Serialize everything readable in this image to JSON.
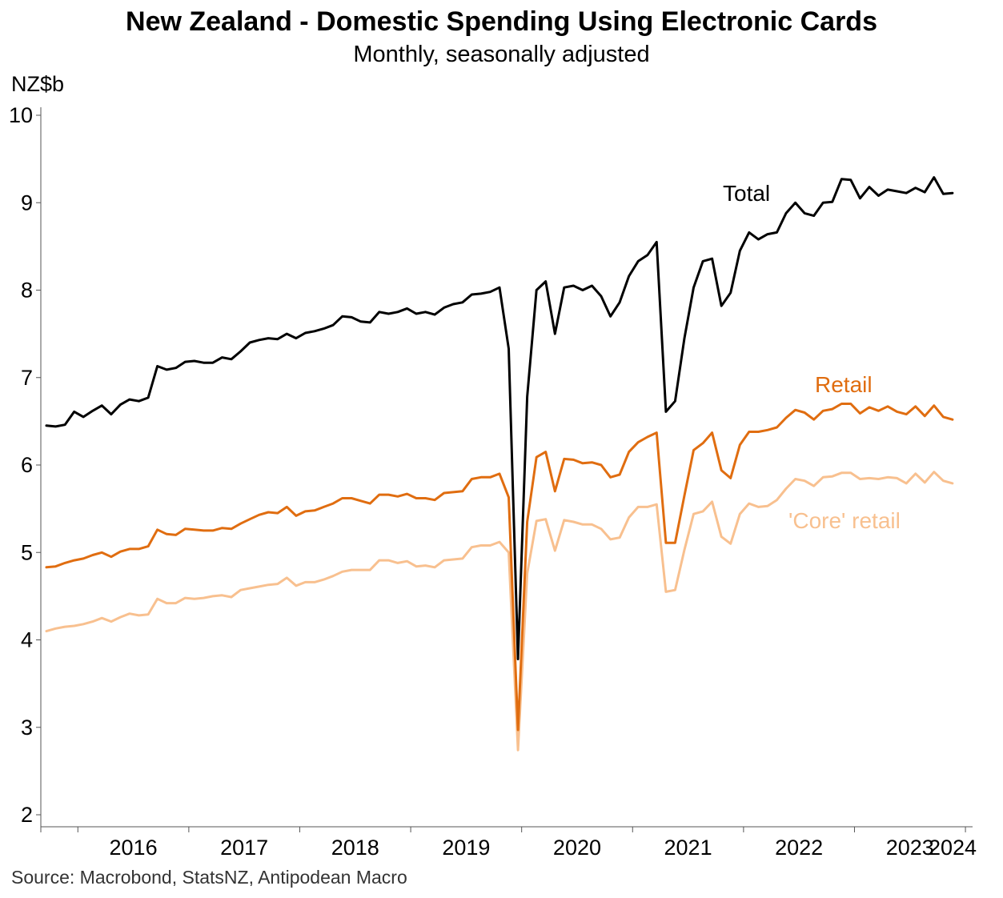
{
  "chart_data": {
    "type": "line",
    "title": "New Zealand - Domestic Spending Using Electronic Cards",
    "subtitle": "Monthly, seasonally adjusted",
    "ylabel": "NZ$b",
    "xlabel": "",
    "ylim": [
      2,
      10
    ],
    "yticks": [
      2,
      3,
      4,
      5,
      6,
      7,
      8,
      9,
      10
    ],
    "x_start": "2015-09",
    "x_tick_labels": [
      "2016",
      "2017",
      "2018",
      "2019",
      "2020",
      "2021",
      "2022",
      "2023",
      "2024"
    ],
    "grid": false,
    "source": "Source: Macrobond, StatsNZ, Antipodean Macro",
    "series": [
      {
        "name": "Total",
        "label": "Total",
        "color": "#000000",
        "values": [
          6.45,
          6.44,
          6.46,
          6.61,
          6.55,
          6.62,
          6.68,
          6.58,
          6.69,
          6.75,
          6.73,
          6.77,
          7.13,
          7.09,
          7.11,
          7.18,
          7.19,
          7.17,
          7.17,
          7.23,
          7.21,
          7.3,
          7.4,
          7.43,
          7.45,
          7.44,
          7.5,
          7.45,
          7.51,
          7.53,
          7.56,
          7.6,
          7.7,
          7.69,
          7.64,
          7.63,
          7.75,
          7.73,
          7.75,
          7.79,
          7.73,
          7.75,
          7.72,
          7.8,
          7.84,
          7.86,
          7.95,
          7.96,
          7.98,
          8.03,
          7.33,
          3.78,
          6.78,
          8.0,
          8.1,
          7.5,
          8.03,
          8.05,
          8.0,
          8.05,
          7.93,
          7.7,
          7.86,
          8.16,
          8.33,
          8.4,
          8.55,
          6.61,
          6.73,
          7.45,
          8.03,
          8.33,
          8.36,
          7.82,
          7.97,
          8.45,
          8.66,
          8.58,
          8.64,
          8.66,
          8.88,
          9.0,
          8.88,
          8.85,
          9.0,
          9.01,
          9.27,
          9.26,
          9.05,
          9.18,
          9.08,
          9.15,
          9.13,
          9.11,
          9.17,
          9.12,
          9.29,
          9.1,
          9.11
        ]
      },
      {
        "name": "Retail",
        "label": "Retail",
        "color": "#e06d10",
        "values": [
          4.83,
          4.84,
          4.88,
          4.91,
          4.93,
          4.97,
          5.0,
          4.95,
          5.01,
          5.04,
          5.04,
          5.07,
          5.26,
          5.21,
          5.2,
          5.27,
          5.26,
          5.25,
          5.25,
          5.28,
          5.27,
          5.33,
          5.38,
          5.43,
          5.46,
          5.45,
          5.52,
          5.42,
          5.47,
          5.48,
          5.52,
          5.56,
          5.62,
          5.62,
          5.59,
          5.56,
          5.66,
          5.66,
          5.64,
          5.67,
          5.62,
          5.62,
          5.6,
          5.68,
          5.69,
          5.7,
          5.84,
          5.86,
          5.86,
          5.9,
          5.63,
          2.97,
          5.35,
          6.09,
          6.15,
          5.7,
          6.07,
          6.06,
          6.02,
          6.03,
          6.0,
          5.86,
          5.89,
          6.15,
          6.26,
          6.32,
          6.37,
          5.11,
          5.11,
          5.65,
          6.17,
          6.25,
          6.37,
          5.94,
          5.85,
          6.23,
          6.38,
          6.38,
          6.4,
          6.43,
          6.54,
          6.63,
          6.6,
          6.52,
          6.62,
          6.64,
          6.7,
          6.7,
          6.59,
          6.66,
          6.62,
          6.67,
          6.61,
          6.58,
          6.67,
          6.56,
          6.68,
          6.55,
          6.52
        ]
      },
      {
        "name": "'Core' retail",
        "label": "'Core' retail",
        "color": "#f8c08f",
        "values": [
          4.1,
          4.13,
          4.15,
          4.16,
          4.18,
          4.21,
          4.25,
          4.21,
          4.26,
          4.3,
          4.28,
          4.29,
          4.47,
          4.42,
          4.42,
          4.48,
          4.47,
          4.48,
          4.5,
          4.51,
          4.49,
          4.57,
          4.59,
          4.61,
          4.63,
          4.64,
          4.71,
          4.62,
          4.66,
          4.66,
          4.69,
          4.73,
          4.78,
          4.8,
          4.8,
          4.8,
          4.91,
          4.91,
          4.88,
          4.9,
          4.84,
          4.85,
          4.83,
          4.91,
          4.92,
          4.93,
          5.06,
          5.08,
          5.08,
          5.12,
          5.0,
          2.74,
          4.76,
          5.36,
          5.38,
          5.02,
          5.37,
          5.35,
          5.32,
          5.32,
          5.27,
          5.15,
          5.17,
          5.4,
          5.52,
          5.52,
          5.55,
          4.55,
          4.57,
          5.03,
          5.44,
          5.47,
          5.58,
          5.18,
          5.1,
          5.44,
          5.56,
          5.52,
          5.53,
          5.6,
          5.73,
          5.84,
          5.82,
          5.76,
          5.86,
          5.87,
          5.91,
          5.91,
          5.84,
          5.85,
          5.84,
          5.86,
          5.85,
          5.79,
          5.9,
          5.8,
          5.92,
          5.82,
          5.79
        ]
      }
    ]
  }
}
